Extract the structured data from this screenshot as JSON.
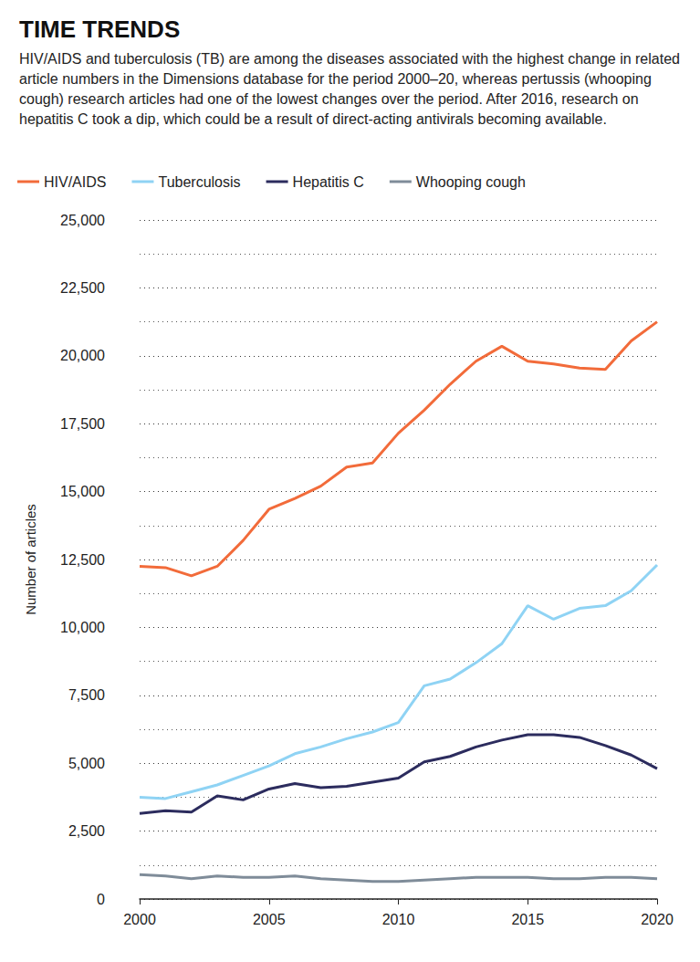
{
  "chart_data": {
    "type": "line",
    "title": "TIME TRENDS",
    "subtitle": "HIV/AIDS and tuberculosis (TB) are among the diseases associated with the highest change in related article numbers in the Dimensions database for the period 2000–20, whereas pertussis (whooping cough) research articles had one of the lowest changes over the period. After 2016, research on hepatitis C took a dip, which could be a result of direct-acting antivirals becoming available.",
    "y_label": "Number of articles",
    "x": [
      2000,
      2001,
      2002,
      2003,
      2004,
      2005,
      2006,
      2007,
      2008,
      2009,
      2010,
      2011,
      2012,
      2013,
      2014,
      2015,
      2016,
      2017,
      2018,
      2019,
      2020
    ],
    "series": [
      {
        "name": "HIV/AIDS",
        "color": "#f26b3a",
        "values": [
          12250,
          12200,
          11900,
          12250,
          13200,
          14350,
          14750,
          15200,
          15900,
          16050,
          17150,
          18000,
          18950,
          19800,
          20350,
          19800,
          19700,
          19550,
          19500,
          20550,
          21250
        ]
      },
      {
        "name": "Tuberculosis",
        "color": "#8fd3f4",
        "values": [
          3750,
          3700,
          3950,
          4200,
          4550,
          4900,
          5350,
          5600,
          5900,
          6150,
          6500,
          7850,
          8100,
          8700,
          9400,
          10800,
          10300,
          10700,
          10800,
          11350,
          12300
        ]
      },
      {
        "name": "Hepatitis C",
        "color": "#2c2c5e",
        "values": [
          3150,
          3250,
          3200,
          3800,
          3650,
          4050,
          4250,
          4100,
          4150,
          4300,
          4450,
          5050,
          5250,
          5600,
          5850,
          6050,
          6050,
          5950,
          5650,
          5300,
          4800
        ]
      },
      {
        "name": "Whooping cough",
        "color": "#7f8c99",
        "values": [
          900,
          850,
          750,
          850,
          800,
          800,
          850,
          750,
          700,
          650,
          650,
          700,
          750,
          800,
          800,
          800,
          750,
          750,
          800,
          800,
          750
        ]
      }
    ],
    "xlim": [
      2000,
      2020
    ],
    "xticks": [
      2000,
      2005,
      2010,
      2015,
      2020
    ],
    "ylim": [
      0,
      25000
    ],
    "yticks": [
      0,
      {
        "value": 2500,
        "label": "2,500"
      },
      {
        "value": 5000,
        "label": "5,000"
      },
      {
        "value": 7500,
        "label": "7,500"
      },
      {
        "value": 10000,
        "label": "10,000"
      },
      {
        "value": 12500,
        "label": "12,500"
      },
      {
        "value": 15000,
        "label": "15,000"
      },
      {
        "value": 17500,
        "label": "17,500"
      },
      {
        "value": 20000,
        "label": "20,000"
      },
      {
        "value": 22500,
        "label": "22,500"
      },
      {
        "value": 25000,
        "label": "25,000"
      }
    ],
    "grid": true,
    "legend": "top-left"
  }
}
